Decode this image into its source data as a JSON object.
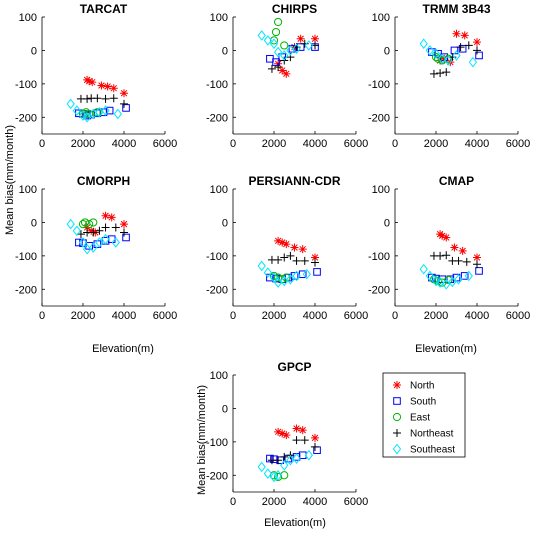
{
  "figure": {
    "ylabel": "Mean bias(mm/month)",
    "xlabel": "Elevation(m)"
  },
  "legend": {
    "placement": "bottom-right",
    "entries": [
      {
        "name": "North",
        "marker": "asterisk",
        "color": "#ff0000"
      },
      {
        "name": "South",
        "marker": "square",
        "color": "#0000ff"
      },
      {
        "name": "East",
        "marker": "circle",
        "color": "#00b400"
      },
      {
        "name": "Northeast",
        "marker": "plus",
        "color": "#000000"
      },
      {
        "name": "Southeast",
        "marker": "diamond",
        "color": "#00e5ff"
      }
    ]
  },
  "chart_data": [
    {
      "type": "scatter",
      "title": "TARCAT",
      "xlim": [
        0,
        6000
      ],
      "ylim": [
        -250,
        100
      ],
      "xticks": [
        0,
        2000,
        4000,
        6000
      ],
      "yticks": [
        -200,
        -100,
        0,
        100
      ],
      "grid": false,
      "series": [
        {
          "name": "North",
          "x": [
            2200,
            2300,
            2450,
            2900,
            3200,
            3500,
            4000
          ],
          "y": [
            -88,
            -92,
            -95,
            -105,
            -108,
            -113,
            -128
          ]
        },
        {
          "name": "South",
          "x": [
            1800,
            2000,
            2200,
            2400,
            2700,
            3000,
            3300,
            4100
          ],
          "y": [
            -188,
            -190,
            -195,
            -192,
            -188,
            -185,
            -180,
            -172
          ]
        },
        {
          "name": "East",
          "x": [
            2000,
            2150,
            2300,
            2700
          ],
          "y": [
            -190,
            -185,
            -190,
            -185
          ]
        },
        {
          "name": "Northeast",
          "x": [
            1900,
            2200,
            2400,
            2700,
            3100,
            3500,
            4000
          ],
          "y": [
            -145,
            -145,
            -143,
            -143,
            -145,
            -143,
            -160
          ]
        },
        {
          "name": "Southeast",
          "x": [
            1400,
            1700,
            2000,
            2200,
            2500,
            2800,
            3100,
            3700
          ],
          "y": [
            -160,
            -180,
            -195,
            -200,
            -190,
            -185,
            -180,
            -190
          ]
        }
      ]
    },
    {
      "type": "scatter",
      "title": "CHIRPS",
      "xlim": [
        0,
        6000
      ],
      "ylim": [
        -250,
        100
      ],
      "xticks": [
        0,
        2000,
        4000,
        6000
      ],
      "yticks": [
        -200,
        -100,
        0,
        100
      ],
      "grid": false,
      "series": [
        {
          "name": "North",
          "x": [
            2200,
            2400,
            2600,
            3000,
            3300,
            4000
          ],
          "y": [
            -40,
            -60,
            -70,
            10,
            35,
            35
          ]
        },
        {
          "name": "South",
          "x": [
            1800,
            2100,
            2400,
            2900,
            3300,
            4000
          ],
          "y": [
            -25,
            -35,
            -20,
            5,
            10,
            10
          ]
        },
        {
          "name": "East",
          "x": [
            2000,
            2100,
            2200,
            2500
          ],
          "y": [
            30,
            55,
            85,
            15
          ]
        },
        {
          "name": "Northeast",
          "x": [
            1900,
            2200,
            2500,
            2800,
            3100,
            3500,
            4000
          ],
          "y": [
            -55,
            -50,
            -30,
            -20,
            10,
            20,
            15
          ]
        },
        {
          "name": "Southeast",
          "x": [
            1400,
            1700,
            2000,
            2200,
            2500,
            2800,
            3100,
            3700
          ],
          "y": [
            45,
            30,
            20,
            -5,
            -15,
            0,
            5,
            15
          ]
        }
      ]
    },
    {
      "type": "scatter",
      "title": "TRMM 3B43",
      "xlim": [
        0,
        6000
      ],
      "ylim": [
        -250,
        100
      ],
      "xticks": [
        0,
        2000,
        4000,
        6000
      ],
      "yticks": [
        -200,
        -100,
        0,
        100
      ],
      "grid": false,
      "series": [
        {
          "name": "North",
          "x": [
            2200,
            2400,
            2700,
            3000,
            3400,
            4000
          ],
          "y": [
            -30,
            -25,
            -35,
            50,
            45,
            25
          ]
        },
        {
          "name": "South",
          "x": [
            1800,
            2100,
            2400,
            2900,
            3300,
            4100
          ],
          "y": [
            -5,
            -10,
            -20,
            0,
            5,
            -15
          ]
        },
        {
          "name": "East",
          "x": [
            2000,
            2100,
            2300,
            2600
          ],
          "y": [
            -20,
            -25,
            -30,
            -25
          ]
        },
        {
          "name": "Northeast",
          "x": [
            1900,
            2200,
            2500,
            2800,
            3200,
            3600,
            4000
          ],
          "y": [
            -70,
            -68,
            -65,
            -20,
            10,
            15,
            0
          ]
        },
        {
          "name": "Southeast",
          "x": [
            1400,
            1700,
            2000,
            2300,
            2600,
            3000,
            3800
          ],
          "y": [
            20,
            0,
            -10,
            -25,
            -30,
            -15,
            -35
          ]
        }
      ]
    },
    {
      "type": "scatter",
      "title": "CMORPH",
      "xlim": [
        0,
        6000
      ],
      "ylim": [
        -250,
        100
      ],
      "xticks": [
        0,
        2000,
        4000,
        6000
      ],
      "yticks": [
        -200,
        -100,
        0,
        100
      ],
      "grid": false,
      "series": [
        {
          "name": "North",
          "x": [
            2200,
            2400,
            2600,
            3100,
            3400,
            4000
          ],
          "y": [
            -15,
            -25,
            -30,
            20,
            15,
            -5
          ]
        },
        {
          "name": "South",
          "x": [
            1800,
            2000,
            2300,
            2700,
            3100,
            3400,
            4100
          ],
          "y": [
            -60,
            -62,
            -70,
            -65,
            -55,
            -50,
            -45
          ]
        },
        {
          "name": "East",
          "x": [
            2000,
            2100,
            2300,
            2500
          ],
          "y": [
            -5,
            0,
            -5,
            0
          ]
        },
        {
          "name": "Northeast",
          "x": [
            1900,
            2200,
            2500,
            2800,
            3100,
            3600,
            4000
          ],
          "y": [
            -35,
            -30,
            -30,
            -25,
            -15,
            -15,
            -30
          ]
        },
        {
          "name": "Southeast",
          "x": [
            1400,
            1700,
            2000,
            2200,
            2500,
            2800,
            3100,
            3600
          ],
          "y": [
            -5,
            -25,
            -60,
            -80,
            -75,
            -60,
            -50,
            -60
          ]
        }
      ]
    },
    {
      "type": "scatter",
      "title": "PERSIANN-CDR",
      "xlim": [
        0,
        6000
      ],
      "ylim": [
        -250,
        100
      ],
      "xticks": [
        0,
        2000,
        4000,
        6000
      ],
      "yticks": [
        -200,
        -100,
        0,
        100
      ],
      "grid": false,
      "series": [
        {
          "name": "North",
          "x": [
            2200,
            2400,
            2600,
            3000,
            3400,
            4000
          ],
          "y": [
            -55,
            -60,
            -65,
            -75,
            -80,
            -105
          ]
        },
        {
          "name": "South",
          "x": [
            1800,
            2100,
            2400,
            2700,
            3000,
            3400,
            4100
          ],
          "y": [
            -165,
            -168,
            -170,
            -165,
            -160,
            -155,
            -148
          ]
        },
        {
          "name": "East",
          "x": [
            2000,
            2200,
            2400,
            2600
          ],
          "y": [
            -160,
            -165,
            -170,
            -165
          ]
        },
        {
          "name": "Northeast",
          "x": [
            1900,
            2200,
            2500,
            2800,
            3100,
            3500,
            4000
          ],
          "y": [
            -112,
            -112,
            -105,
            -100,
            -115,
            -115,
            -120
          ]
        },
        {
          "name": "Southeast",
          "x": [
            1400,
            1700,
            2000,
            2200,
            2500,
            2800,
            3100,
            3600
          ],
          "y": [
            -130,
            -150,
            -165,
            -180,
            -175,
            -170,
            -160,
            -155
          ]
        }
      ]
    },
    {
      "type": "scatter",
      "title": "CMAP",
      "xlim": [
        0,
        6000
      ],
      "ylim": [
        -250,
        100
      ],
      "xticks": [
        0,
        2000,
        4000,
        6000
      ],
      "yticks": [
        -200,
        -100,
        0,
        100
      ],
      "grid": false,
      "series": [
        {
          "name": "North",
          "x": [
            2200,
            2300,
            2500,
            2900,
            3300,
            4000
          ],
          "y": [
            -35,
            -40,
            -45,
            -75,
            -85,
            -105
          ]
        },
        {
          "name": "South",
          "x": [
            1800,
            2000,
            2300,
            2700,
            3000,
            3400,
            4100
          ],
          "y": [
            -165,
            -168,
            -170,
            -170,
            -165,
            -160,
            -145
          ]
        },
        {
          "name": "East",
          "x": [
            1900,
            2100,
            2300,
            2600
          ],
          "y": [
            -170,
            -175,
            -180,
            -172
          ]
        },
        {
          "name": "Northeast",
          "x": [
            1900,
            2200,
            2500,
            2800,
            3100,
            3500,
            4000
          ],
          "y": [
            -100,
            -100,
            -98,
            -115,
            -115,
            -118,
            -125
          ]
        },
        {
          "name": "Southeast",
          "x": [
            1400,
            1700,
            2000,
            2200,
            2500,
            2800,
            3100,
            3600
          ],
          "y": [
            -140,
            -160,
            -175,
            -180,
            -185,
            -178,
            -170,
            -160
          ]
        }
      ]
    },
    {
      "type": "scatter",
      "title": "GPCP",
      "xlim": [
        0,
        6000
      ],
      "ylim": [
        -250,
        100
      ],
      "xticks": [
        0,
        2000,
        4000,
        6000
      ],
      "yticks": [
        -200,
        -100,
        0,
        100
      ],
      "grid": false,
      "series": [
        {
          "name": "North",
          "x": [
            2200,
            2400,
            2600,
            3100,
            3400,
            4000
          ],
          "y": [
            -70,
            -75,
            -80,
            -60,
            -65,
            -88
          ]
        },
        {
          "name": "South",
          "x": [
            1800,
            2000,
            2300,
            2700,
            3100,
            3400,
            4100
          ],
          "y": [
            -150,
            -152,
            -155,
            -150,
            -145,
            -140,
            -125
          ]
        },
        {
          "name": "East",
          "x": [
            2000,
            2200,
            2500
          ],
          "y": [
            -200,
            -205,
            -200
          ]
        },
        {
          "name": "Northeast",
          "x": [
            1900,
            2200,
            2500,
            2800,
            3100,
            3500,
            4000
          ],
          "y": [
            -155,
            -155,
            -145,
            -140,
            -95,
            -95,
            -115
          ]
        },
        {
          "name": "Southeast",
          "x": [
            1400,
            1700,
            2000,
            2200,
            2500,
            2800,
            3100,
            3700
          ],
          "y": [
            -175,
            -195,
            -205,
            -200,
            -170,
            -155,
            -150,
            -140
          ]
        }
      ]
    }
  ]
}
